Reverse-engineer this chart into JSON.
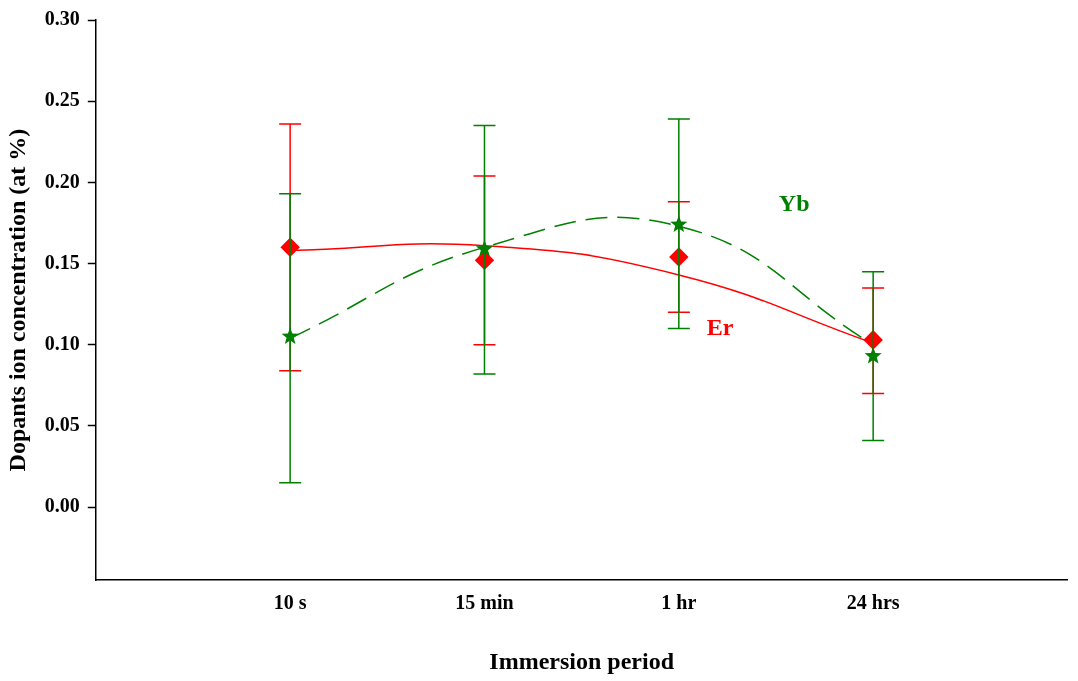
{
  "chart_data": {
    "type": "line",
    "xlabel": "Immersion period",
    "ylabel": "Dopants ion concentration (at %)",
    "categories": [
      "10 s",
      "15 min",
      "1 hr",
      "24 hrs"
    ],
    "ylim": [
      -0.045,
      0.3
    ],
    "yticks": [
      {
        "value": 0,
        "label": "0.00"
      },
      {
        "value": 0.05,
        "label": "0.05"
      },
      {
        "value": 0.1,
        "label": "0.10"
      },
      {
        "value": 0.15,
        "label": "0.15"
      },
      {
        "value": 0.2,
        "label": "0.20"
      },
      {
        "value": 0.25,
        "label": "0.25"
      },
      {
        "value": 0.3,
        "label": "0.30"
      }
    ],
    "legend": false,
    "grid": false,
    "series": [
      {
        "name": "Er",
        "type": "scatter",
        "color": "#ff0000",
        "marker": "diamond",
        "values": [
          0.16,
          0.152,
          0.154,
          0.103
        ],
        "errors": [
          [
            0.084,
            0.236
          ],
          [
            0.1,
            0.204
          ],
          [
            0.12,
            0.188
          ],
          [
            0.07,
            0.135
          ]
        ]
      },
      {
        "name": "Yb",
        "type": "scatter",
        "color": "#008000",
        "marker": "star",
        "values": [
          0.105,
          0.159,
          0.174,
          0.093
        ],
        "errors": [
          [
            0.015,
            0.193
          ],
          [
            0.082,
            0.235
          ],
          [
            0.11,
            0.239
          ],
          [
            0.041,
            0.145
          ]
        ]
      },
      {
        "type": "line",
        "color": "#ff0000",
        "line_style": "solid",
        "marker": "none",
        "values": [
          0.158,
          0.161,
          0.143,
          0.101
        ]
      },
      {
        "type": "line",
        "color": "#008000",
        "line_style": "dashed",
        "marker": "none",
        "values": [
          0.104,
          0.16,
          0.173,
          0.1
        ]
      }
    ]
  }
}
